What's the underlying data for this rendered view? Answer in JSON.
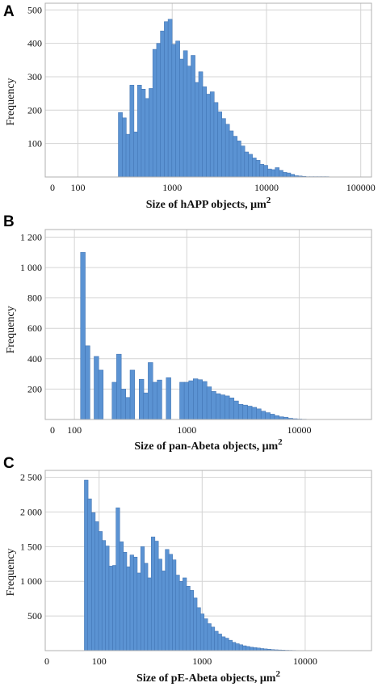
{
  "chart_data": [
    {
      "type": "bar",
      "panel": "A",
      "xlabel": "Size of hAPP objects, μm",
      "xlabel_sup": "2",
      "ylabel": "Frequency",
      "x_scale": "log",
      "x_zero_tick": "0",
      "x_ticks": [
        {
          "value": 100,
          "label": "100"
        },
        {
          "value": 1000,
          "label": "1000"
        },
        {
          "value": 10000,
          "label": "10000"
        },
        {
          "value": 100000,
          "label": "100000"
        }
      ],
      "xlim": [
        45,
        130000
      ],
      "ylim": [
        0,
        520
      ],
      "y_ticks": [
        {
          "value": 100,
          "label": "100"
        },
        {
          "value": 200,
          "label": "200"
        },
        {
          "value": 300,
          "label": "300"
        },
        {
          "value": 400,
          "label": "400"
        },
        {
          "value": 500,
          "label": "500"
        }
      ],
      "grid": true,
      "bar_width_log": 0.0435,
      "x": [
        282,
        310,
        340,
        374,
        410,
        450,
        494,
        543,
        596,
        654,
        718,
        788,
        866,
        950,
        1043,
        1145,
        1258,
        1381,
        1516,
        1664,
        1827,
        2006,
        2202,
        2418,
        2655,
        2915,
        3200,
        3513,
        3857,
        4235,
        4650,
        5105,
        5605,
        6154,
        6756,
        7418,
        8144,
        8941,
        9817,
        10778,
        11833,
        12992,
        14264,
        15660,
        17194,
        18877,
        20725,
        22754,
        24981,
        27427,
        30112,
        33060,
        36296,
        39850,
        43751,
        48034,
        52737,
        57899,
        63568,
        69791,
        76623,
        84124,
        92360,
        101401
      ],
      "values": [
        193,
        177,
        128,
        275,
        135,
        275,
        263,
        235,
        265,
        382,
        400,
        437,
        465,
        472,
        397,
        407,
        353,
        378,
        332,
        364,
        283,
        315,
        270,
        248,
        255,
        223,
        195,
        175,
        158,
        138,
        122,
        108,
        93,
        75,
        68,
        57,
        50,
        38,
        35,
        24,
        22,
        28,
        20,
        14,
        12,
        8,
        4,
        3,
        2,
        1,
        1,
        1,
        1,
        1,
        1,
        0,
        0,
        0,
        0,
        0,
        0,
        0,
        0,
        0
      ]
    },
    {
      "type": "bar",
      "panel": "B",
      "xlabel": "Size of pan-Abeta objects, μm",
      "xlabel_sup": "2",
      "ylabel": "Frequency",
      "x_scale": "log",
      "x_zero_tick": "0",
      "x_ticks": [
        {
          "value": 100,
          "label": "100"
        },
        {
          "value": 1000,
          "label": "1000"
        },
        {
          "value": 10000,
          "label": "10000"
        }
      ],
      "xlim": [
        55,
        44000
      ],
      "ylim": [
        0,
        1250
      ],
      "y_ticks": [
        {
          "value": 200,
          "label": "200"
        },
        {
          "value": 400,
          "label": "400"
        },
        {
          "value": 600,
          "label": "600"
        },
        {
          "value": 800,
          "label": "800"
        },
        {
          "value": 1000,
          "label": "1 000"
        },
        {
          "value": 1200,
          "label": "1 200"
        }
      ],
      "grid": true,
      "bar_width_log": 0.0418,
      "x": [
        119,
        131,
        143,
        157,
        172,
        189,
        207,
        227,
        249,
        273,
        299,
        328,
        360,
        395,
        433,
        475,
        521,
        572,
        627,
        688,
        754,
        827,
        907,
        995,
        1092,
        1197,
        1313,
        1441,
        1580,
        1733,
        1901,
        2085,
        2287,
        2509,
        2752,
        3019,
        3312,
        3633,
        3985,
        4371,
        4795,
        5260,
        5769,
        6328,
        6942,
        7615,
        8353,
        9163,
        10051,
        11025,
        12094,
        13266,
        14552,
        15962,
        17510,
        19207,
        21069,
        23111,
        25351,
        27809,
        30504,
        33461,
        36704,
        40262
      ],
      "values": [
        1100,
        485,
        0,
        415,
        325,
        0,
        0,
        245,
        430,
        200,
        145,
        325,
        0,
        265,
        175,
        375,
        245,
        260,
        0,
        275,
        0,
        0,
        245,
        245,
        255,
        268,
        262,
        250,
        215,
        185,
        170,
        162,
        155,
        142,
        122,
        100,
        95,
        88,
        80,
        70,
        55,
        45,
        35,
        25,
        18,
        15,
        8,
        5,
        3,
        2,
        1,
        1,
        1,
        1,
        1,
        0,
        0,
        0,
        0,
        0,
        0,
        0,
        0,
        0
      ]
    },
    {
      "type": "bar",
      "panel": "C",
      "xlabel": "Size of pE-Abeta objects, μm",
      "xlabel_sup": "2",
      "ylabel": "Frequency",
      "x_scale": "log",
      "x_zero_tick": "0",
      "x_ticks": [
        {
          "value": 100,
          "label": "100"
        },
        {
          "value": 1000,
          "label": "1000"
        },
        {
          "value": 10000,
          "label": "10000"
        }
      ],
      "xlim": [
        30,
        44000
      ],
      "ylim": [
        0,
        2600
      ],
      "y_ticks": [
        {
          "value": 500,
          "label": "500"
        },
        {
          "value": 1000,
          "label": "1 000"
        },
        {
          "value": 1500,
          "label": "1 500"
        },
        {
          "value": 2000,
          "label": "2 000"
        },
        {
          "value": 2500,
          "label": "2 500"
        }
      ],
      "grid": true,
      "bar_width_log": 0.0364,
      "x": [
        75,
        81,
        88,
        95,
        103,
        111,
        120,
        130,
        141,
        152,
        165,
        178,
        193,
        208,
        225,
        244,
        264,
        285,
        309,
        334,
        361,
        391,
        423,
        457,
        495,
        535,
        579,
        626,
        677,
        733,
        793,
        857,
        927,
        1003,
        1085,
        1174,
        1270,
        1374,
        1486,
        1608,
        1739,
        1881,
        2035,
        2202,
        2382,
        2576,
        2787,
        3015,
        3261,
        3528,
        3816,
        4128,
        4466,
        4831,
        5226,
        5653,
        6115,
        6615,
        7156,
        7741,
        8374,
        9059,
        9799,
        10600,
        11467,
        12405,
        13419,
        14516,
        15703,
        16987,
        18375,
        19878,
        21503,
        23261,
        25163,
        27220,
        29445,
        31852,
        34456,
        37273,
        40320
      ],
      "values": [
        2460,
        2190,
        1990,
        1860,
        1720,
        1590,
        1510,
        1220,
        1230,
        2060,
        1570,
        1420,
        1210,
        1380,
        1350,
        1120,
        1500,
        1260,
        1050,
        1640,
        1580,
        1320,
        1150,
        1460,
        1390,
        1310,
        1090,
        1000,
        1050,
        930,
        870,
        760,
        620,
        530,
        460,
        390,
        340,
        280,
        240,
        200,
        180,
        150,
        120,
        100,
        85,
        70,
        60,
        50,
        45,
        38,
        30,
        25,
        20,
        15,
        12,
        10,
        8,
        6,
        5,
        4,
        3,
        2,
        2,
        1,
        1,
        1,
        1,
        1,
        0,
        0,
        0,
        0,
        0,
        0,
        0,
        0,
        0,
        0,
        0,
        0,
        0
      ]
    }
  ]
}
